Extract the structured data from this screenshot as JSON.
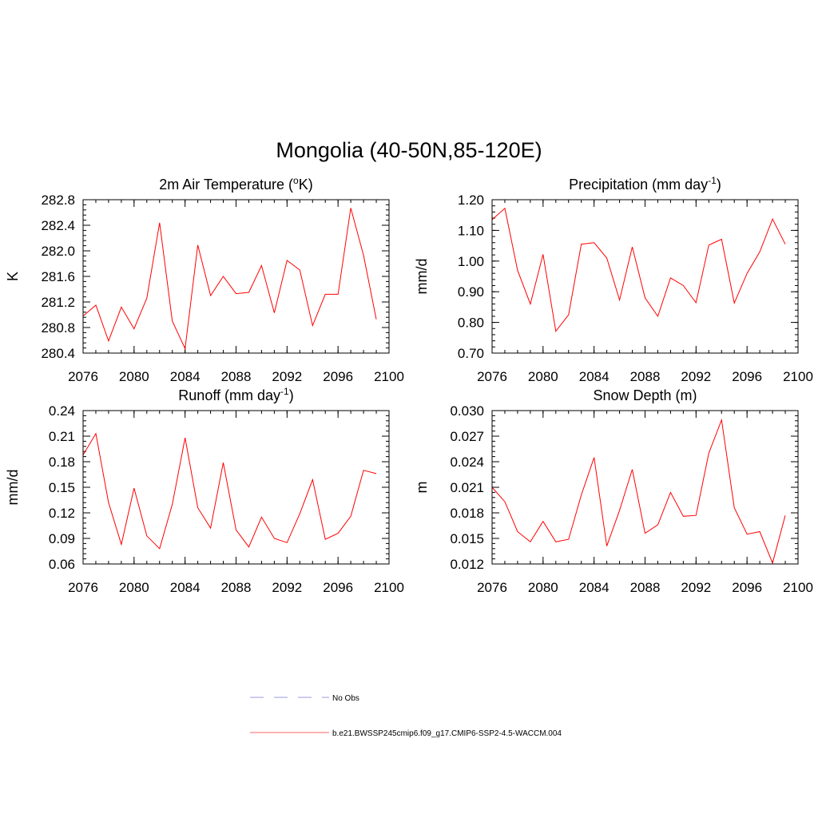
{
  "figure": {
    "title": "Mongolia (40-50N,85-120E)"
  },
  "chart_data": [
    {
      "type": "line",
      "title": "2m Air Temperature (",
      "title_sup": "o",
      "title_suffix": "K)",
      "ylabel": "K",
      "xlabel": "",
      "xlim": [
        2076,
        2100
      ],
      "ylim": [
        280.4,
        282.8
      ],
      "xticks": [
        "2076",
        "2080",
        "2084",
        "2088",
        "2092",
        "2096",
        "2100"
      ],
      "yticks": [
        "280.4",
        "280.8",
        "281.2",
        "281.6",
        "282.0",
        "282.4",
        "282.8"
      ],
      "series": [
        {
          "color": "#ff0000",
          "x": [
            2076,
            2077,
            2078,
            2079,
            2080,
            2081,
            2082,
            2083,
            2084,
            2085,
            2086,
            2087,
            2088,
            2089,
            2090,
            2091,
            2092,
            2093,
            2094,
            2095,
            2096,
            2097,
            2098,
            2099
          ],
          "y": [
            280.98,
            281.15,
            280.59,
            281.12,
            280.78,
            281.26,
            282.44,
            280.9,
            280.47,
            282.09,
            281.3,
            281.6,
            281.33,
            281.35,
            281.77,
            281.03,
            281.85,
            281.7,
            280.83,
            281.32,
            281.32,
            282.67,
            281.93,
            280.93
          ]
        }
      ]
    },
    {
      "type": "line",
      "title": "Precipitation (mm day",
      "title_sup": "-1",
      "title_suffix": ")",
      "ylabel": "mm/d",
      "xlabel": "",
      "xlim": [
        2076,
        2100
      ],
      "ylim": [
        0.7,
        1.2
      ],
      "xticks": [
        "2076",
        "2080",
        "2084",
        "2088",
        "2092",
        "2096",
        "2100"
      ],
      "yticks": [
        "0.70",
        "0.80",
        "0.90",
        "1.00",
        "1.10",
        "1.20"
      ],
      "series": [
        {
          "color": "#ff0000",
          "x": [
            2076,
            2077,
            2078,
            2079,
            2080,
            2081,
            2082,
            2083,
            2084,
            2085,
            2086,
            2087,
            2088,
            2089,
            2090,
            2091,
            2092,
            2093,
            2094,
            2095,
            2096,
            2097,
            2098,
            2099
          ],
          "y": [
            1.135,
            1.172,
            0.97,
            0.86,
            1.022,
            0.771,
            0.825,
            1.055,
            1.06,
            1.01,
            0.873,
            1.046,
            0.88,
            0.82,
            0.945,
            0.92,
            0.864,
            1.052,
            1.071,
            0.863,
            0.96,
            1.03,
            1.137,
            1.055
          ]
        }
      ]
    },
    {
      "type": "line",
      "title": "Runoff (mm day",
      "title_sup": "-1",
      "title_suffix": ")",
      "ylabel": "mm/d",
      "xlabel": "",
      "xlim": [
        2076,
        2100
      ],
      "ylim": [
        0.06,
        0.24
      ],
      "xticks": [
        "2076",
        "2080",
        "2084",
        "2088",
        "2092",
        "2096",
        "2100"
      ],
      "yticks": [
        "0.06",
        "0.09",
        "0.12",
        "0.15",
        "0.18",
        "0.21",
        "0.24"
      ],
      "series": [
        {
          "color": "#ff0000",
          "x": [
            2076,
            2077,
            2078,
            2079,
            2080,
            2081,
            2082,
            2083,
            2084,
            2085,
            2086,
            2087,
            2088,
            2089,
            2090,
            2091,
            2092,
            2093,
            2094,
            2095,
            2096,
            2097,
            2098,
            2099
          ],
          "y": [
            0.188,
            0.213,
            0.132,
            0.083,
            0.149,
            0.093,
            0.078,
            0.13,
            0.208,
            0.126,
            0.102,
            0.179,
            0.1,
            0.08,
            0.115,
            0.09,
            0.085,
            0.119,
            0.159,
            0.089,
            0.096,
            0.116,
            0.17,
            0.166
          ]
        }
      ]
    },
    {
      "type": "line",
      "title": "Snow Depth (m)",
      "title_sup": "",
      "title_suffix": "",
      "ylabel": "m",
      "xlabel": "",
      "xlim": [
        2076,
        2100
      ],
      "ylim": [
        0.012,
        0.03
      ],
      "xticks": [
        "2076",
        "2080",
        "2084",
        "2088",
        "2092",
        "2096",
        "2100"
      ],
      "yticks": [
        "0.012",
        "0.015",
        "0.018",
        "0.021",
        "0.024",
        "0.027",
        "0.030"
      ],
      "series": [
        {
          "color": "#ff0000",
          "x": [
            2076,
            2077,
            2078,
            2079,
            2080,
            2081,
            2082,
            2083,
            2084,
            2085,
            2086,
            2087,
            2088,
            2089,
            2090,
            2091,
            2092,
            2093,
            2094,
            2095,
            2096,
            2097,
            2098,
            2099
          ],
          "y": [
            0.021,
            0.0193,
            0.0158,
            0.0146,
            0.017,
            0.0146,
            0.0149,
            0.0201,
            0.0245,
            0.0141,
            0.0183,
            0.0231,
            0.0156,
            0.0166,
            0.0204,
            0.0176,
            0.0177,
            0.025,
            0.0289,
            0.0186,
            0.0155,
            0.0158,
            0.0121,
            0.0177
          ]
        }
      ]
    }
  ],
  "legend": {
    "items": [
      {
        "label": "No Obs",
        "color": "#9999dd",
        "dashed": true
      },
      {
        "label": "b.e21.BWSSP245cmip6.f09_g17.CMIP6-SSP2-4.5-WACCM.004",
        "color": "#ff6666",
        "dashed": false
      }
    ]
  }
}
